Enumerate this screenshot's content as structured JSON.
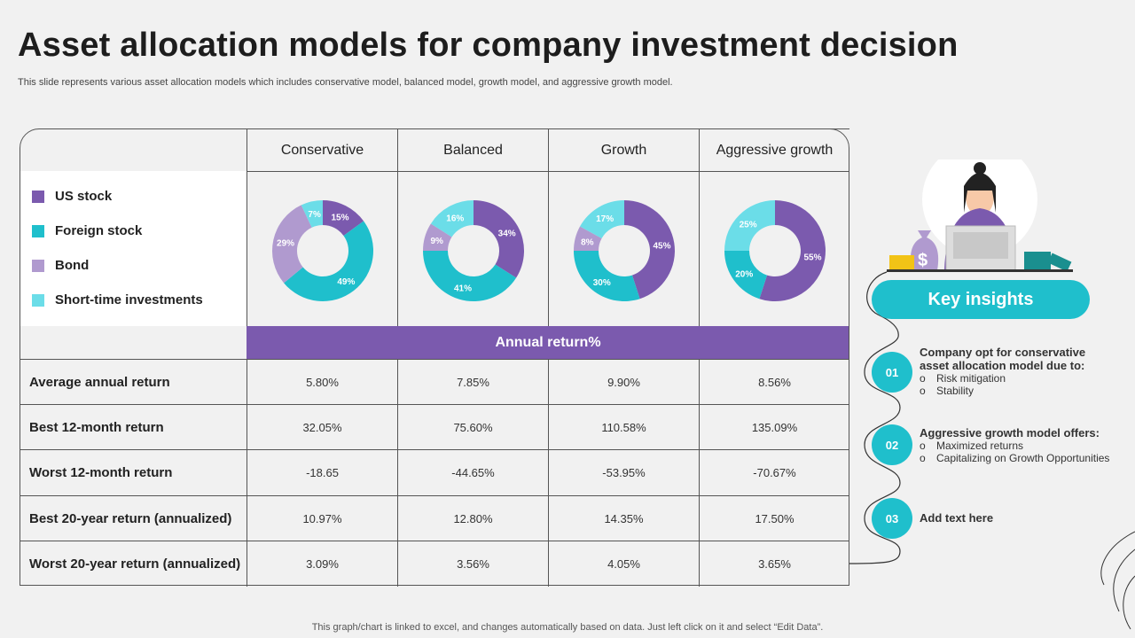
{
  "title": "Asset allocation models for company investment decision",
  "subtitle": "This slide represents various asset allocation models which includes conservative model, balanced model, growth model, and aggressive growth model.",
  "colors": {
    "us_stock": "#7b5aae",
    "foreign_stock": "#1fbfcc",
    "bond": "#b09acf",
    "short_time": "#6bdde8",
    "accent": "#1fbfcc"
  },
  "legend": [
    "US stock",
    "Foreign stock",
    "Bond",
    "Short-time investments"
  ],
  "columns": [
    "Conservative",
    "Balanced",
    "Growth",
    "Aggressive growth"
  ],
  "chart_data": [
    {
      "type": "pie",
      "title": "Conservative",
      "categories": [
        "US stock",
        "Foreign stock",
        "Bond",
        "Short-time investments"
      ],
      "values": [
        15,
        49,
        29,
        7
      ],
      "labels": [
        "15%",
        "49%",
        "29%",
        "7%"
      ]
    },
    {
      "type": "pie",
      "title": "Balanced",
      "categories": [
        "US stock",
        "Foreign stock",
        "Bond",
        "Short-time investments"
      ],
      "values": [
        34,
        41,
        9,
        16
      ],
      "labels": [
        "34%",
        "41%",
        "9%",
        "16%"
      ]
    },
    {
      "type": "pie",
      "title": "Growth",
      "categories": [
        "US stock",
        "Foreign stock",
        "Bond",
        "Short-time investments"
      ],
      "values": [
        45,
        30,
        8,
        17
      ],
      "labels": [
        "45%",
        "30%",
        "8%",
        "17%"
      ]
    },
    {
      "type": "pie",
      "title": "Aggressive growth",
      "categories": [
        "US stock",
        "Foreign stock",
        "Bond",
        "Short-time investments"
      ],
      "values": [
        55,
        20,
        0,
        25
      ],
      "labels": [
        "55%",
        "20%",
        "",
        "25%"
      ]
    }
  ],
  "annual_return_label": "Annual return%",
  "rows": [
    {
      "label": "Average annual return",
      "values": [
        "5.80%",
        "7.85%",
        "9.90%",
        "8.56%"
      ]
    },
    {
      "label": "Best 12-month return",
      "values": [
        "32.05%",
        "75.60%",
        "110.58%",
        "135.09%"
      ]
    },
    {
      "label": "Worst 12-month return",
      "values": [
        "-18.65",
        "-44.65%",
        "-53.95%",
        "-70.67%"
      ]
    },
    {
      "label": "Best 20-year return (annualized)",
      "values": [
        "10.97%",
        "12.80%",
        "14.35%",
        "17.50%"
      ]
    },
    {
      "label": "Worst 20-year return (annualized)",
      "values": [
        "3.09%",
        "3.56%",
        "4.05%",
        "3.65%"
      ]
    }
  ],
  "insights": {
    "title": "Key insights",
    "items": [
      {
        "num": "01",
        "heading": "Company opt for conservative asset allocation model due to:",
        "bullets": [
          "Risk mitigation",
          "Stability"
        ]
      },
      {
        "num": "02",
        "heading": "Aggressive growth model offers:",
        "bullets": [
          "Maximized returns",
          "Capitalizing on Growth Opportunities"
        ]
      },
      {
        "num": "03",
        "heading": "Add text here",
        "bullets": []
      }
    ]
  },
  "footer": "This graph/chart is linked to excel,  and changes automatically based on data. Just left click on it and select “Edit Data”."
}
